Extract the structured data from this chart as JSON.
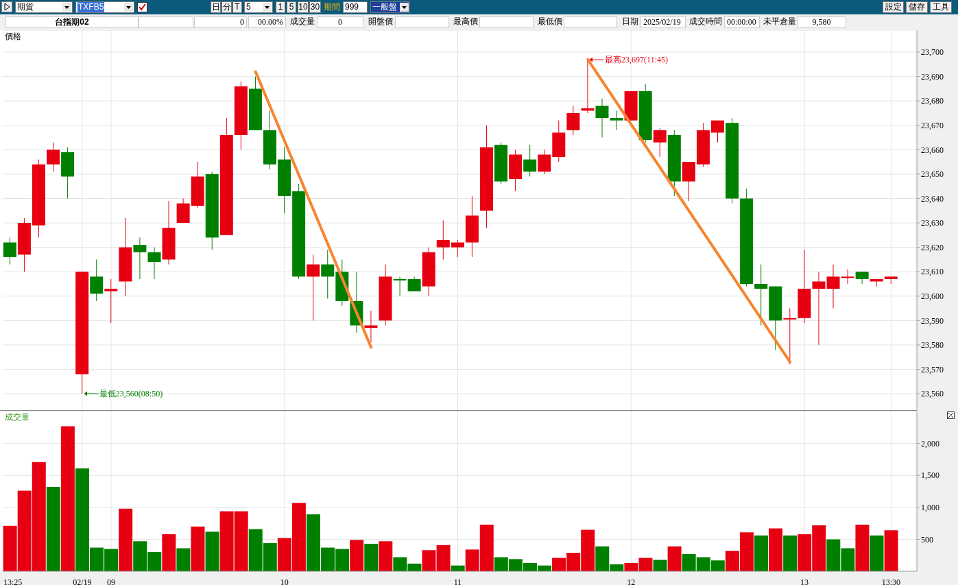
{
  "chart_data": [
    {
      "type": "other",
      "annotations": [
        "期貨",
        "TXFB5",
        "日",
        "分",
        "T",
        "5",
        "1",
        "5",
        "10",
        "30",
        "期間",
        "999",
        "一般盤",
        "設定",
        "儲存",
        "工具"
      ]
    },
    {
      "type": "other",
      "annotations": [
        "台指期02",
        "0",
        "00.00%",
        "成交量",
        "0",
        "開盤價",
        "最高價",
        "最低價",
        "日期",
        "2025/02/19",
        "成交時間",
        "00:00:00",
        "未平倉量",
        "9,580"
      ]
    },
    {
      "type": "candlestick",
      "ylabel": "價格",
      "grid": true,
      "categories": [
        null,
        null,
        null,
        null,
        null,
        null,
        null,
        null,
        null,
        null,
        null,
        null,
        null,
        null,
        null,
        null,
        null,
        null,
        null,
        null,
        null,
        null,
        null,
        null,
        null,
        null,
        null,
        null,
        null,
        null,
        null,
        null,
        null,
        null,
        null,
        null,
        null,
        null,
        null,
        null,
        null,
        null,
        null,
        null,
        null,
        null,
        null,
        null,
        null,
        null,
        null,
        null,
        null,
        null,
        null,
        null,
        null,
        null,
        null,
        null,
        null,
        null
      ],
      "ohlc": [
        [
          23622,
          23624,
          23613,
          23616
        ],
        [
          23617,
          23632,
          23610,
          23630
        ],
        [
          23629,
          23656,
          23624,
          23654
        ],
        [
          23654,
          23663,
          23651,
          23660
        ],
        [
          23659,
          23661,
          23640,
          23649
        ],
        [
          23568,
          23610,
          23560,
          23610
        ],
        [
          23608,
          23615,
          23598,
          23601
        ],
        [
          23602,
          23607,
          23589,
          23603
        ],
        [
          23606,
          23632,
          23600,
          23620
        ],
        [
          23621,
          23624,
          23607,
          23618
        ],
        [
          23618,
          23620,
          23607,
          23614
        ],
        [
          23615,
          23639,
          23613,
          23628
        ],
        [
          23630,
          23640,
          23630,
          23638
        ],
        [
          23637,
          23655,
          23636,
          23649
        ],
        [
          23650,
          23651,
          23619,
          23624
        ],
        [
          23625,
          23673,
          23625,
          23666
        ],
        [
          23666,
          23688,
          23660,
          23686
        ],
        [
          23685,
          23690,
          23668,
          23668
        ],
        [
          23668,
          23676,
          23652,
          23654
        ],
        [
          23656,
          23661,
          23634,
          23641
        ],
        [
          23643,
          23646,
          23607,
          23608
        ],
        [
          23608,
          23617,
          23590,
          23613
        ],
        [
          23613,
          23619,
          23599,
          23608
        ],
        [
          23610,
          23615,
          23596,
          23598
        ],
        [
          23598,
          23610,
          23585,
          23588
        ],
        [
          23587,
          23594,
          23581,
          23588
        ],
        [
          23590,
          23613,
          23588,
          23608
        ],
        [
          23607,
          23608,
          23600,
          23607
        ],
        [
          23607,
          23608,
          23602,
          23602
        ],
        [
          23604,
          23620,
          23600,
          23618
        ],
        [
          23620,
          23631,
          23615,
          23623
        ],
        [
          23620,
          23623,
          23616,
          23622
        ],
        [
          23622,
          23641,
          23616,
          23633
        ],
        [
          23635,
          23670,
          23628,
          23661
        ],
        [
          23662,
          23663,
          23646,
          23647
        ],
        [
          23648,
          23660,
          23643,
          23658
        ],
        [
          23656,
          23662,
          23649,
          23651
        ],
        [
          23651,
          23660,
          23650,
          23658
        ],
        [
          23657,
          23672,
          23655,
          23667
        ],
        [
          23668,
          23678,
          23666,
          23675
        ],
        [
          23676,
          23697,
          23675,
          23677
        ],
        [
          23678,
          23681,
          23665,
          23673
        ],
        [
          23673,
          23676,
          23668,
          23672
        ],
        [
          23672,
          23684,
          23672,
          23684
        ],
        [
          23684,
          23687,
          23663,
          23664
        ],
        [
          23663,
          23669,
          23657,
          23668
        ],
        [
          23666,
          23668,
          23641,
          23647
        ],
        [
          23647,
          23655,
          23639,
          23655
        ],
        [
          23654,
          23671,
          23653,
          23668
        ],
        [
          23667,
          23672,
          23663,
          23672
        ],
        [
          23671,
          23673,
          23638,
          23640
        ],
        [
          23640,
          23644,
          23604,
          23605
        ],
        [
          23605,
          23613,
          23588,
          23603
        ],
        [
          23604,
          23604,
          23578,
          23590
        ],
        [
          23591,
          23595,
          23572,
          23591
        ],
        [
          23591,
          23619,
          23589,
          23603
        ],
        [
          23603,
          23610,
          23580,
          23606
        ],
        [
          23603,
          23613,
          23595,
          23608
        ],
        [
          23608,
          23611,
          23605,
          23608
        ],
        [
          23610,
          23610,
          23605,
          23607
        ],
        [
          23606,
          23607,
          23604,
          23607
        ],
        [
          23607,
          23608,
          23605,
          23608
        ]
      ],
      "colors": [
        "#008000",
        "#e60012",
        "#e60012",
        "#e60012",
        "#008000",
        "#e60012",
        "#008000",
        "#e60012",
        "#e60012",
        "#008000",
        "#008000",
        "#e60012",
        "#e60012",
        "#e60012",
        "#008000",
        "#e60012",
        "#e60012",
        "#008000",
        "#008000",
        "#008000",
        "#008000",
        "#e60012",
        "#008000",
        "#008000",
        "#008000",
        "#e60012",
        "#e60012",
        "#008000",
        "#008000",
        "#e60012",
        "#e60012",
        "#e60012",
        "#e60012",
        "#e60012",
        "#008000",
        "#e60012",
        "#008000",
        "#e60012",
        "#e60012",
        "#e60012",
        "#e60012",
        "#008000",
        "#008000",
        "#e60012",
        "#008000",
        "#e60012",
        "#008000",
        "#e60012",
        "#e60012",
        "#e60012",
        "#008000",
        "#008000",
        "#008000",
        "#008000",
        "#e60012",
        "#e60012",
        "#e60012",
        "#e60012",
        "#e60012",
        "#008000",
        "#e60012",
        "#e60012"
      ],
      "series": [
        {
          "type": "line",
          "color": "#f7852f",
          "values": [
            null,
            null,
            null,
            null,
            null,
            null,
            null,
            null,
            null,
            null,
            null,
            null,
            null,
            null,
            null,
            null,
            null,
            23692,
            null,
            null,
            null,
            null,
            null,
            null,
            null,
            23579,
            null,
            null,
            null,
            null,
            null,
            null,
            null,
            null,
            null,
            null,
            null,
            null,
            null,
            null,
            null,
            null,
            null,
            null,
            null,
            null,
            null,
            null,
            null,
            null,
            null,
            null,
            null,
            null,
            null,
            null,
            null,
            null,
            null,
            null,
            null,
            null
          ]
        },
        {
          "type": "line",
          "color": "#f7852f",
          "values": [
            null,
            null,
            null,
            null,
            null,
            null,
            null,
            null,
            null,
            null,
            null,
            null,
            null,
            null,
            null,
            null,
            null,
            null,
            null,
            null,
            null,
            null,
            null,
            null,
            null,
            null,
            null,
            null,
            null,
            null,
            null,
            null,
            null,
            null,
            null,
            null,
            null,
            null,
            null,
            null,
            23697,
            null,
            null,
            null,
            null,
            null,
            null,
            null,
            null,
            null,
            null,
            null,
            null,
            null,
            23573,
            null,
            null,
            null,
            null,
            null,
            null,
            null
          ]
        }
      ],
      "ylim": [
        23553,
        23709
      ],
      "yticks": [
        {
          "value": 23560,
          "label": "23,560"
        },
        {
          "value": 23570,
          "label": "23,570"
        },
        {
          "value": 23580,
          "label": "23,580"
        },
        {
          "value": 23590,
          "label": "23,590"
        },
        {
          "value": 23600,
          "label": "23,600"
        },
        {
          "value": 23610,
          "label": "23,610"
        },
        {
          "value": 23620,
          "label": "23,620"
        },
        {
          "value": 23630,
          "label": "23,630"
        },
        {
          "value": 23640,
          "label": "23,640"
        },
        {
          "value": 23650,
          "label": "23,650"
        },
        {
          "value": 23660,
          "label": "23,660"
        },
        {
          "value": 23670,
          "label": "23,670"
        },
        {
          "value": 23680,
          "label": "23,680"
        },
        {
          "value": 23690,
          "label": "23,690"
        },
        {
          "value": 23700,
          "label": "23,700"
        }
      ],
      "annotations": [
        "最低23,560(08:50)",
        "最高23,697(11:45)"
      ]
    },
    {
      "type": "bar",
      "ylabel": "成交量",
      "grid": true,
      "categories": [
        "13:25",
        null,
        null,
        null,
        null,
        "02/19",
        null,
        "09",
        null,
        null,
        null,
        null,
        null,
        null,
        null,
        null,
        null,
        null,
        null,
        "10",
        null,
        null,
        null,
        null,
        null,
        null,
        null,
        null,
        null,
        null,
        null,
        "11",
        null,
        null,
        null,
        null,
        null,
        null,
        null,
        null,
        null,
        null,
        null,
        "12",
        null,
        null,
        null,
        null,
        null,
        null,
        null,
        null,
        null,
        null,
        null,
        "13",
        null,
        null,
        null,
        null,
        null,
        "13:30"
      ],
      "values": [
        710,
        1260,
        1710,
        1320,
        2270,
        1610,
        370,
        350,
        980,
        470,
        300,
        580,
        360,
        700,
        620,
        940,
        940,
        660,
        440,
        520,
        1070,
        890,
        370,
        350,
        490,
        430,
        470,
        220,
        120,
        330,
        410,
        90,
        340,
        730,
        220,
        190,
        130,
        90,
        210,
        290,
        650,
        390,
        110,
        130,
        210,
        180,
        390,
        270,
        220,
        170,
        320,
        610,
        560,
        670,
        560,
        580,
        720,
        500,
        360,
        730,
        560,
        640
      ],
      "colors": [
        "#e60012",
        "#e60012",
        "#e60012",
        "#008000",
        "#e60012",
        "#008000",
        "#008000",
        "#008000",
        "#e60012",
        "#008000",
        "#008000",
        "#e60012",
        "#008000",
        "#e60012",
        "#008000",
        "#e60012",
        "#e60012",
        "#008000",
        "#008000",
        "#e60012",
        "#e60012",
        "#008000",
        "#008000",
        "#008000",
        "#e60012",
        "#008000",
        "#e60012",
        "#008000",
        "#008000",
        "#e60012",
        "#e60012",
        "#008000",
        "#e60012",
        "#e60012",
        "#008000",
        "#008000",
        "#008000",
        "#008000",
        "#e60012",
        "#e60012",
        "#e60012",
        "#008000",
        "#008000",
        "#e60012",
        "#e60012",
        "#008000",
        "#e60012",
        "#008000",
        "#008000",
        "#008000",
        "#e60012",
        "#e60012",
        "#008000",
        "#e60012",
        "#008000",
        "#e60012",
        "#e60012",
        "#008000",
        "#008000",
        "#e60012",
        "#008000",
        "#e60012"
      ],
      "ylim": [
        0,
        2500
      ],
      "yticks": [
        500,
        {
          "value": 1000,
          "label": "1,000"
        },
        {
          "value": 1500,
          "label": "1,500"
        },
        {
          "value": 2000,
          "label": "2,000"
        }
      ]
    }
  ]
}
